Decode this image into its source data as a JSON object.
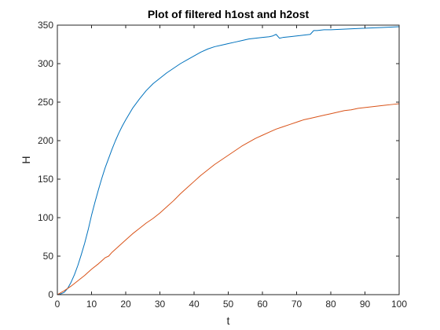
{
  "chart_data": {
    "type": "line",
    "title": "Plot of filtered h1ost and h2ost",
    "xlabel": "t",
    "ylabel": "H",
    "xlim": [
      0,
      100
    ],
    "ylim": [
      0,
      350
    ],
    "xticks": [
      0,
      10,
      20,
      30,
      40,
      50,
      60,
      70,
      80,
      90,
      100
    ],
    "yticks": [
      0,
      50,
      100,
      150,
      200,
      250,
      300,
      350
    ],
    "grid": false,
    "legend": "none",
    "series": [
      {
        "color": "#0072BD",
        "x": [
          0,
          1,
          2,
          3,
          4,
          5,
          6,
          7,
          8,
          9,
          10,
          11,
          12,
          13,
          14,
          15,
          16,
          17,
          18,
          19,
          20,
          22,
          24,
          26,
          28,
          30,
          32,
          34,
          36,
          38,
          40,
          42,
          44,
          46,
          48,
          50,
          52,
          54,
          56,
          58,
          60,
          62,
          63,
          64,
          65,
          66,
          68,
          70,
          72,
          74,
          75,
          76,
          78,
          80,
          85,
          90,
          95,
          100
        ],
        "y": [
          0,
          1,
          3,
          8,
          16,
          26,
          38,
          52,
          67,
          84,
          103,
          120,
          136,
          151,
          165,
          177,
          189,
          200,
          210,
          219,
          227,
          242,
          254,
          265,
          274,
          281,
          288,
          294,
          300,
          305,
          310,
          315,
          319,
          322,
          324,
          326,
          328,
          330,
          332,
          333,
          334,
          335,
          336,
          338,
          333,
          334,
          335,
          336,
          337,
          338,
          343,
          343,
          344,
          344,
          345,
          346,
          347,
          348
        ]
      },
      {
        "color": "#D95319",
        "x": [
          0,
          2,
          4,
          6,
          8,
          10,
          12,
          14,
          15,
          16,
          18,
          20,
          22,
          24,
          26,
          28,
          30,
          32,
          34,
          36,
          38,
          40,
          42,
          44,
          46,
          48,
          50,
          52,
          54,
          56,
          58,
          60,
          62,
          64,
          66,
          68,
          70,
          72,
          74,
          76,
          78,
          80,
          82,
          84,
          86,
          88,
          90,
          92,
          94,
          96,
          98,
          100
        ],
        "y": [
          0,
          5,
          11,
          18,
          25,
          33,
          40,
          48,
          50,
          55,
          63,
          71,
          79,
          86,
          93,
          99,
          106,
          114,
          122,
          131,
          139,
          147,
          155,
          162,
          169,
          175,
          181,
          187,
          193,
          198,
          203,
          207,
          211,
          215,
          218,
          221,
          224,
          227,
          229,
          231,
          233,
          235,
          237,
          239,
          240,
          242,
          243,
          244,
          245,
          246,
          247,
          248
        ]
      }
    ]
  }
}
